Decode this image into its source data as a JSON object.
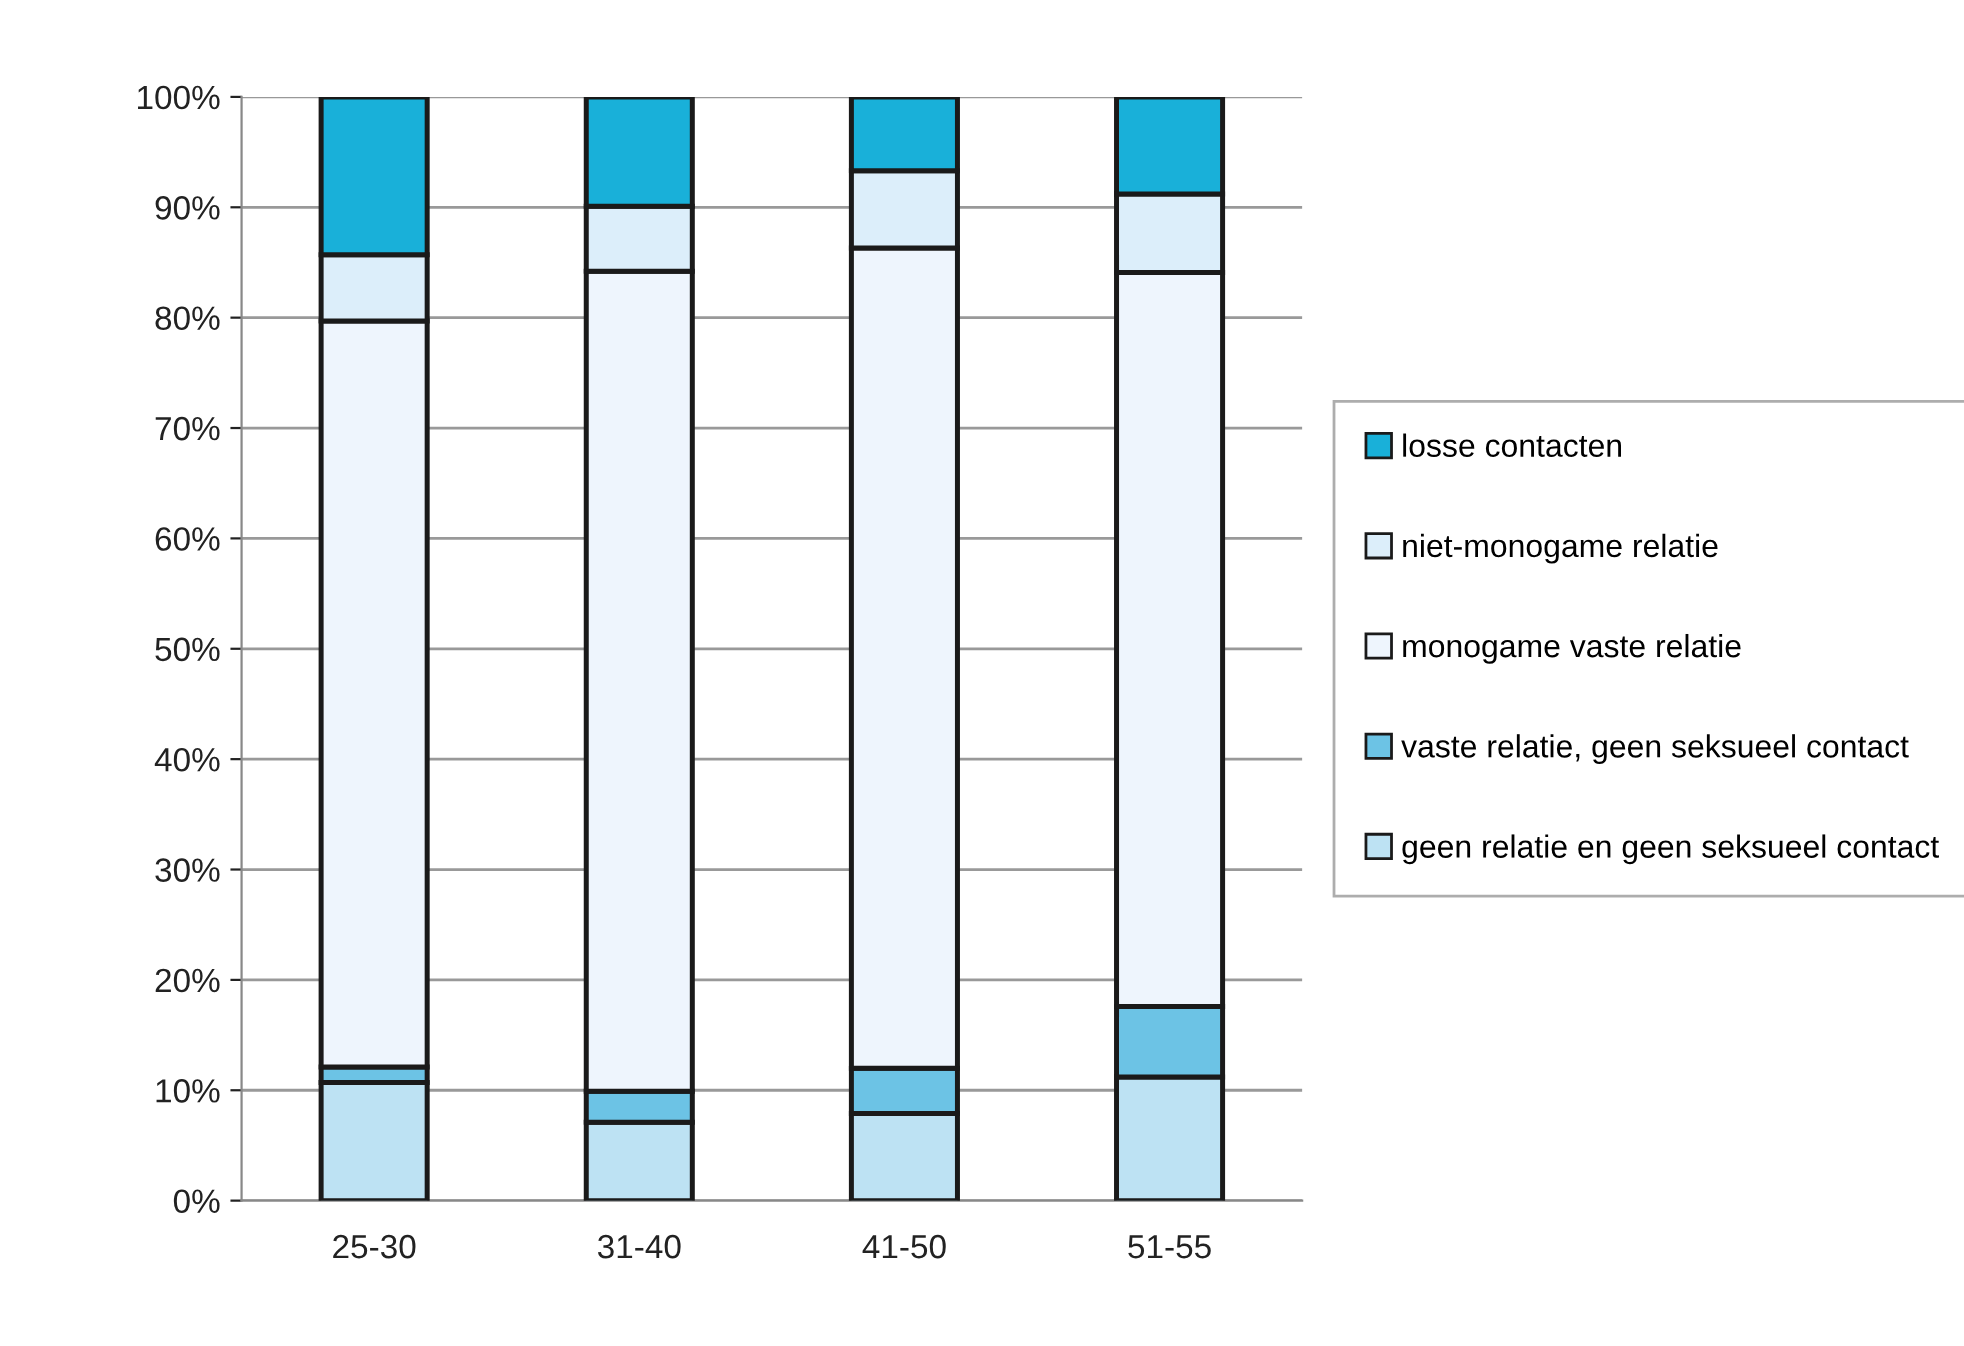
{
  "chart_data": {
    "type": "bar",
    "stacked": true,
    "categories": [
      "25-30",
      "31-40",
      "41-50",
      "51-55"
    ],
    "series": [
      {
        "name": "geen relatie en geen seksueel contact",
        "color": "#bde2f3",
        "values": [
          10.7,
          7.1,
          7.9,
          11.2
        ]
      },
      {
        "name": "vaste relatie, geen seksueel contact",
        "color": "#6cc3e5",
        "values": [
          1.4,
          2.8,
          4.1,
          6.4
        ]
      },
      {
        "name": "monogame vaste relatie",
        "color": "#eef5fd",
        "values": [
          67.6,
          74.3,
          74.3,
          66.5
        ]
      },
      {
        "name": "niet-monogame relatie",
        "color": "#dceefa",
        "values": [
          6.0,
          5.9,
          7.0,
          7.1
        ]
      },
      {
        "name": "losse contacten",
        "color": "#19b0d9",
        "values": [
          14.3,
          9.9,
          6.7,
          8.8
        ]
      }
    ],
    "ylim": [
      0,
      100
    ],
    "yticks": [
      {
        "value": 0,
        "label": "0%"
      },
      {
        "value": 10,
        "label": "10%"
      },
      {
        "value": 20,
        "label": "20%"
      },
      {
        "value": 30,
        "label": "30%"
      },
      {
        "value": 40,
        "label": "40%"
      },
      {
        "value": 50,
        "label": "50%"
      },
      {
        "value": 60,
        "label": "60%"
      },
      {
        "value": 70,
        "label": "70%"
      },
      {
        "value": 80,
        "label": "80%"
      },
      {
        "value": 90,
        "label": "90%"
      },
      {
        "value": 100,
        "label": "100%"
      }
    ],
    "grid": "y",
    "legend": "right"
  }
}
